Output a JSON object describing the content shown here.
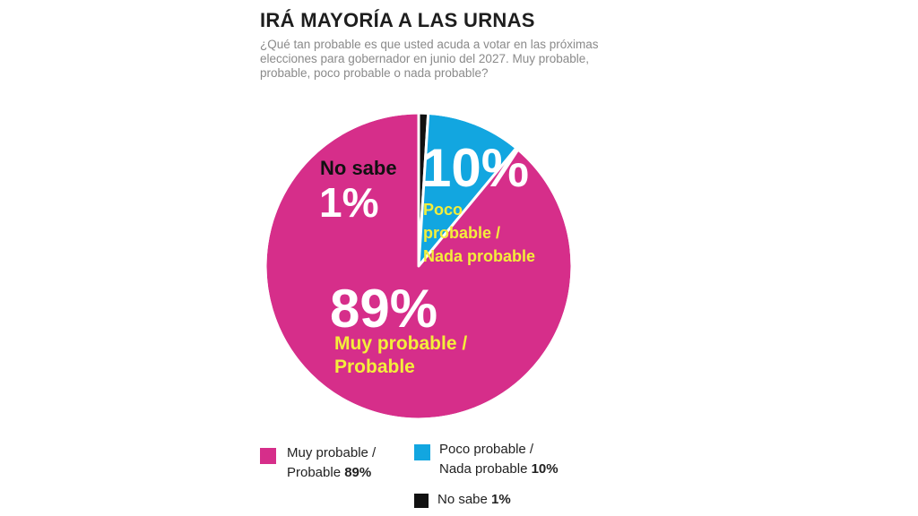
{
  "title": "IRÁ MAYORÍA A LAS URNAS",
  "subtitle": "¿Qué tan probable es que usted acuda a votar en las próximas elecciones para gobernador en junio del 2027. Muy probable, probable, poco probable o nada probable?",
  "chart_data": {
    "type": "pie",
    "title": "IRÁ MAYORÍA A LAS URNAS",
    "slices": [
      {
        "label_lines": [
          "Muy probable /",
          "Probable"
        ],
        "value": 89,
        "display": "89%",
        "color": "#d62e8a"
      },
      {
        "label_lines": [
          "No sabe"
        ],
        "value": 1,
        "display": "1%",
        "color": "#111111"
      },
      {
        "label_lines": [
          "Poco",
          "probable /",
          "Nada probable"
        ],
        "value": 10,
        "display": "10%",
        "color": "#12a6e0"
      }
    ],
    "label_color": "#f4ee3a",
    "legend": [
      {
        "label_line1": "Muy probable /",
        "label_line2": "Probable",
        "value": "89%",
        "color": "#d62e8a"
      },
      {
        "label_line1": "Poco probable /",
        "label_line2": "Nada probable",
        "value": "10%",
        "color": "#12a6e0"
      },
      {
        "label_line1": "No sabe",
        "label_line2": "",
        "value": "1%",
        "color": "#111111"
      }
    ],
    "legend_placement": "bottom"
  }
}
